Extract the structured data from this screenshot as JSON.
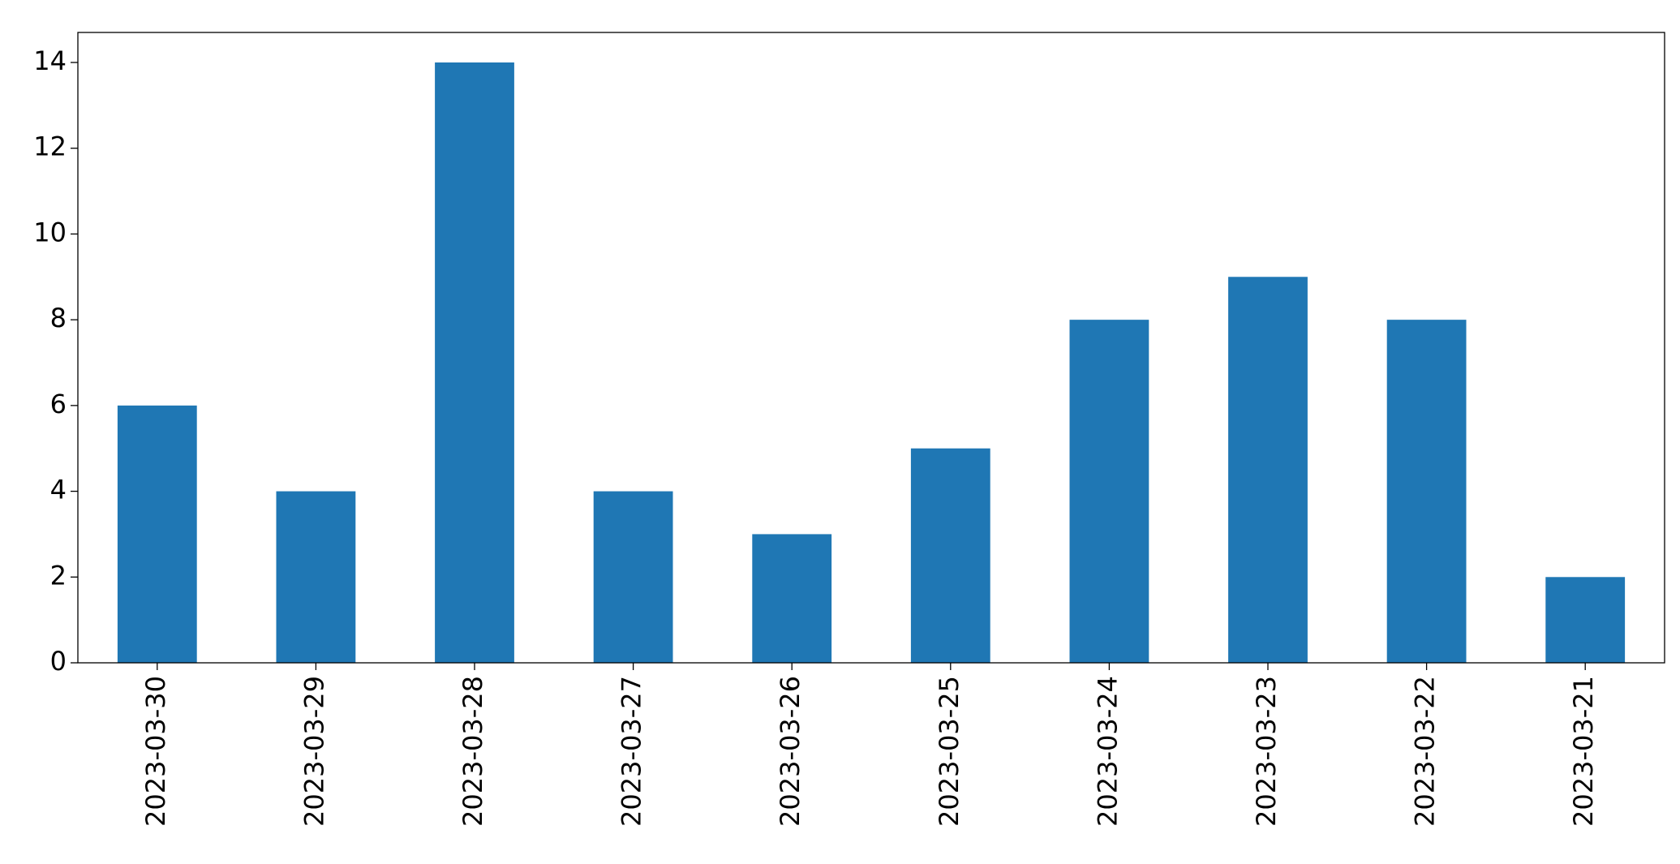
{
  "chart_data": {
    "type": "bar",
    "categories": [
      "2023-03-30",
      "2023-03-29",
      "2023-03-28",
      "2023-03-27",
      "2023-03-26",
      "2023-03-25",
      "2023-03-24",
      "2023-03-23",
      "2023-03-22",
      "2023-03-21"
    ],
    "values": [
      6,
      4,
      14,
      4,
      3,
      5,
      8,
      9,
      8,
      2
    ],
    "color": "#1f77b4",
    "ylim": [
      0,
      14.7
    ],
    "yticks": [
      0,
      2,
      4,
      6,
      8,
      10,
      12,
      14
    ],
    "grid": false
  }
}
